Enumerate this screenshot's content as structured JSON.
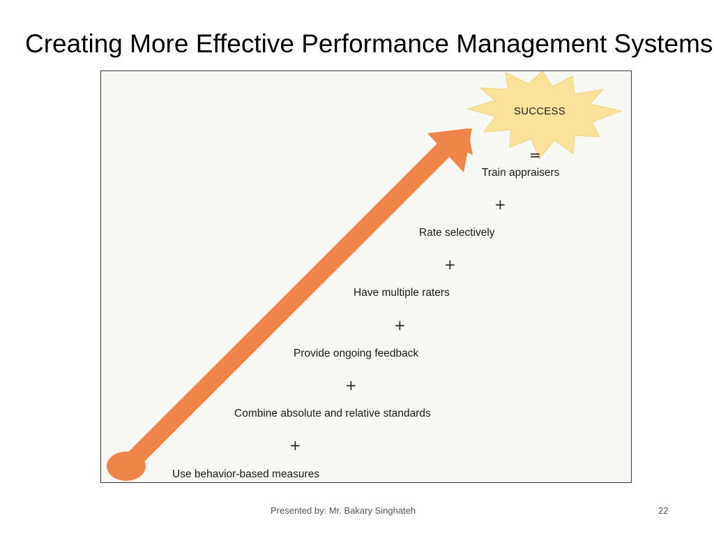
{
  "slide": {
    "title": "Creating More Effective Performance Management Systems"
  },
  "diagram": {
    "result_label": "SUCCESS",
    "equals_symbol": "=",
    "plus_symbol": "+",
    "steps": [
      "Train appraisers",
      "Rate selectively",
      "Have multiple raters",
      "Provide ongoing feedback",
      "Combine absolute and relative standards",
      "Use behavior-based measures"
    ],
    "colors": {
      "arrow": "#f0854a",
      "starburst": "#fae29a",
      "background": "#f7f8f4"
    },
    "icons": {
      "arrow": "rising-arrow",
      "result": "starburst"
    }
  },
  "footer": {
    "presenter": "Presented by: Mr. Bakary Singhateh",
    "page_number": "22"
  }
}
